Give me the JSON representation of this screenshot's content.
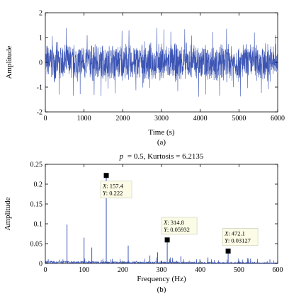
{
  "chart_data": [
    {
      "type": "line",
      "panel_label": "(a)",
      "title": "",
      "xlabel": "Time (s)",
      "ylabel": "Amplitude",
      "xlim": [
        0,
        6000
      ],
      "ylim": [
        -2,
        2
      ],
      "xticks": [
        "0",
        "1000",
        "2000",
        "3000",
        "4000",
        "5000",
        "6000"
      ],
      "yticks": [
        "-2",
        "-1",
        "0",
        "1",
        "2"
      ],
      "color": "#3b54b4",
      "series": [
        {
          "values_desc": "",
          "noise_band": [
            -0.85,
            0.85
          ],
          "impulse_interval_s": 180,
          "impulse_amplitude": [
            1.0,
            1.4
          ]
        }
      ]
    },
    {
      "type": "line",
      "panel_label": "(b)",
      "title": "p = 0.5, Kurtosis = 6.2135",
      "title_parts": {
        "p": "p",
        "eq": "= 0.5, Kurtosis = 6.2135"
      },
      "xlabel": "Frequency (Hz)",
      "ylabel": "Amplitude",
      "xlim": [
        0,
        600
      ],
      "ylim": [
        0,
        0.25
      ],
      "xticks": [
        "0",
        "100",
        "200",
        "300",
        "400",
        "500",
        "600"
      ],
      "yticks": [
        "0",
        "0.05",
        "0.1",
        "0.15",
        "0.2",
        "0.25"
      ],
      "color": "#3b54b4",
      "spikes": [
        {
          "x": 56,
          "y": 0.098
        },
        {
          "x": 100,
          "y": 0.065
        },
        {
          "x": 120,
          "y": 0.04
        },
        {
          "x": 157.4,
          "y": 0.222
        },
        {
          "x": 214,
          "y": 0.045
        },
        {
          "x": 270,
          "y": 0.02
        },
        {
          "x": 290,
          "y": 0.028
        },
        {
          "x": 314.8,
          "y": 0.05932
        },
        {
          "x": 350,
          "y": 0.018
        },
        {
          "x": 420,
          "y": 0.015
        },
        {
          "x": 472.1,
          "y": 0.03127
        },
        {
          "x": 530,
          "y": 0.012
        },
        {
          "x": 580,
          "y": 0.01
        }
      ],
      "datatips": [
        {
          "x": 157.4,
          "y": 0.222,
          "xtext": "157.4",
          "ytext": "0.222"
        },
        {
          "x": 314.8,
          "y": 0.05932,
          "xtext": "314.8",
          "ytext": "0.05932"
        },
        {
          "x": 472.1,
          "y": 0.03127,
          "xtext": "472.1",
          "ytext": "0.03127"
        }
      ],
      "tip_x_prefix": "X",
      "tip_y_prefix": "Y",
      "tip_sep": ": "
    }
  ]
}
